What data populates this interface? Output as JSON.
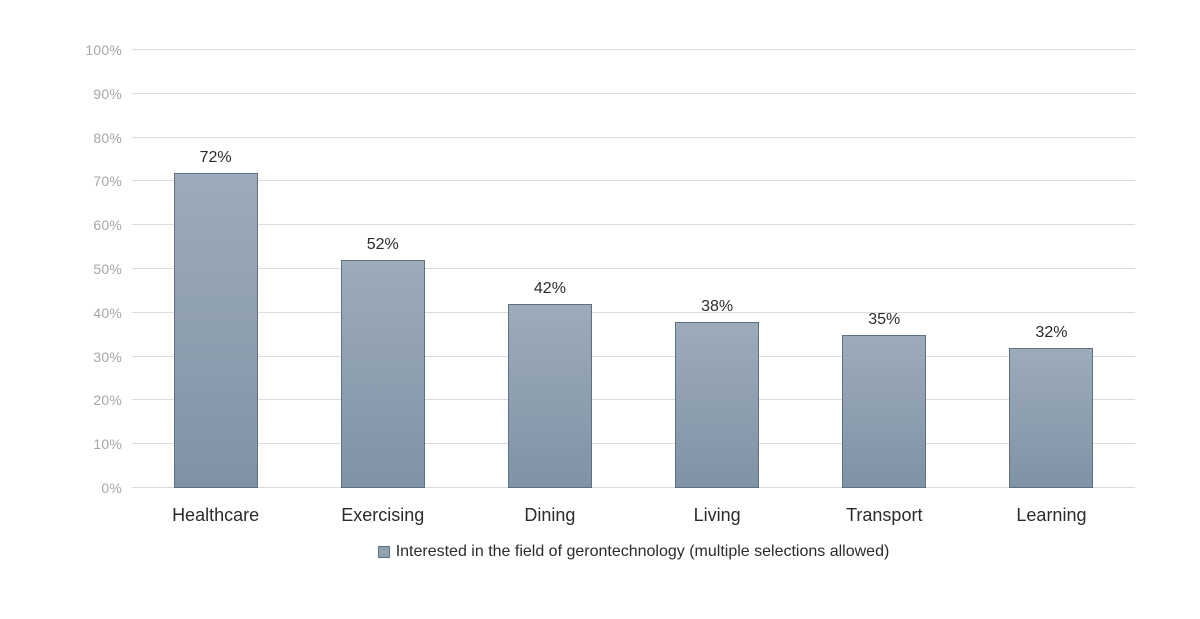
{
  "chart_data": {
    "type": "bar",
    "title": "",
    "xlabel": "",
    "ylabel": "",
    "categories": [
      "Healthcare",
      "Exercising",
      "Dining",
      "Living",
      "Transport",
      "Learning"
    ],
    "values": [
      72,
      52,
      42,
      38,
      35,
      32
    ],
    "data_labels": [
      "72%",
      "52%",
      "42%",
      "38%",
      "35%",
      "32%"
    ],
    "ylim": [
      0,
      100
    ],
    "y_tick_labels": [
      "0%",
      "10%",
      "20%",
      "30%",
      "40%",
      "50%",
      "60%",
      "70%",
      "80%",
      "90%",
      "100%"
    ],
    "grid": "horizontal",
    "legend": {
      "position": "bottom",
      "entries": [
        {
          "label": "Interested in the field of gerontechnology (multiple selections allowed)",
          "swatch_fill": "#8ea2b4",
          "swatch_border": "#5f7181"
        }
      ]
    },
    "colors": {
      "bar_fill_top": "#9dabba",
      "bar_fill_bottom": "#7f93a6",
      "bar_border": "#5f7181",
      "gridline": "#dcdcdc",
      "y_tick_label": "#a6a6a6",
      "label_text": "#2b2b2b"
    }
  }
}
